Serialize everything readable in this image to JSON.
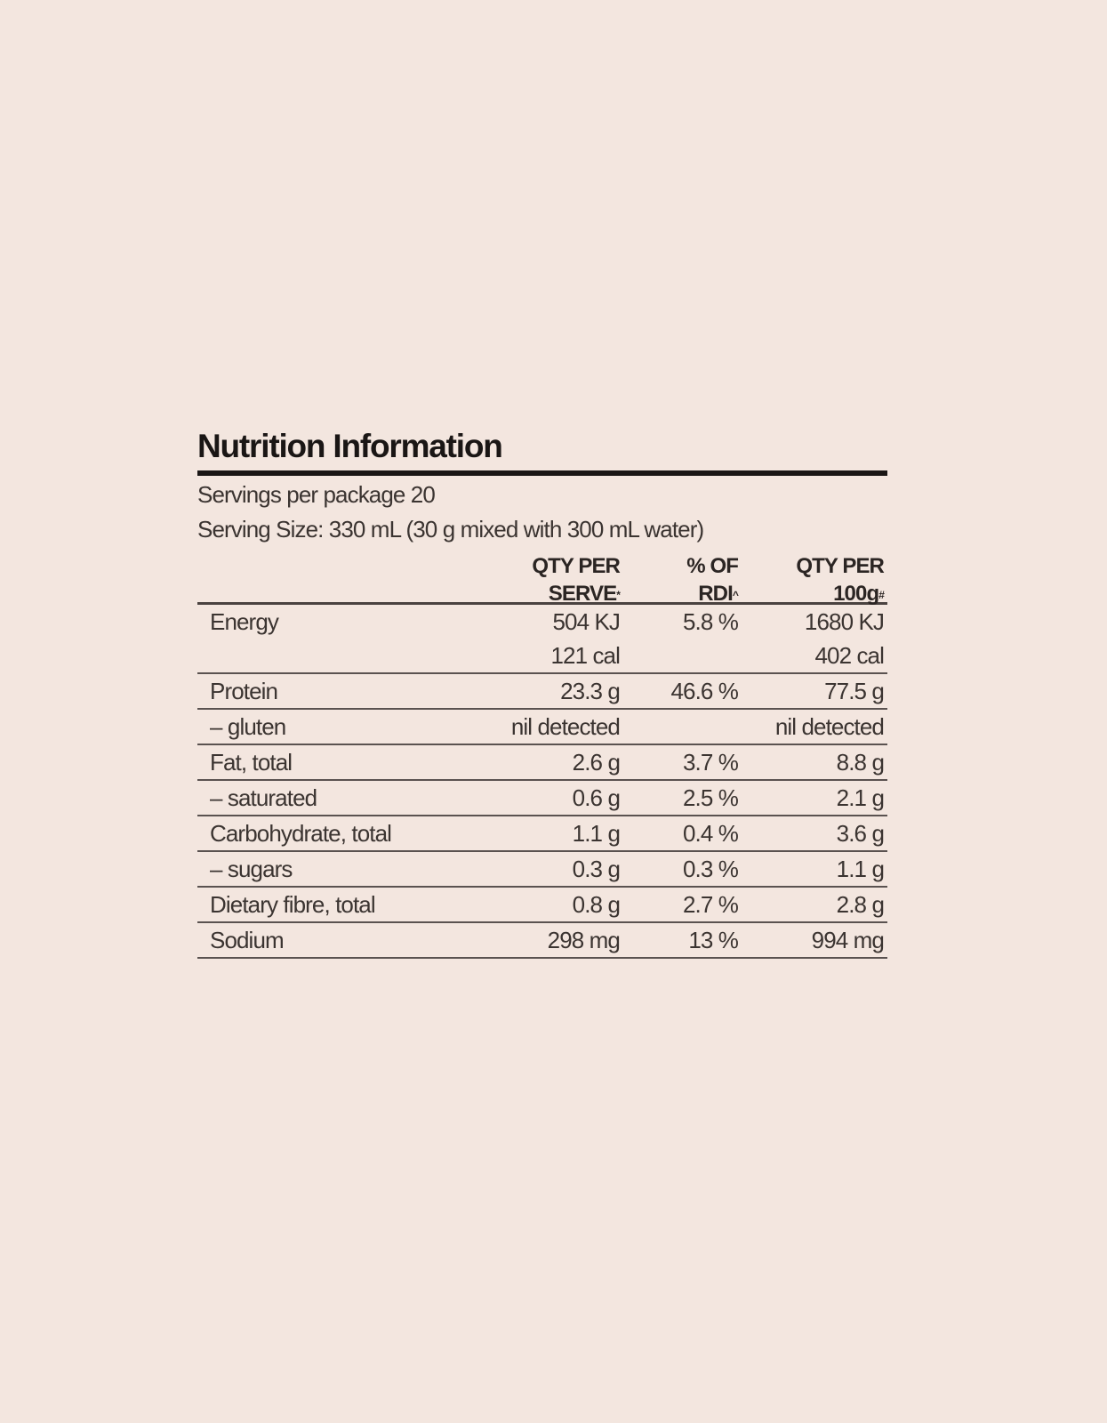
{
  "title": "Nutrition Information",
  "servings_per_package": "Servings per package 20",
  "serving_size": "Serving Size: 330 mL (30 g mixed with 300 mL water)",
  "columns": [
    {
      "line1": "",
      "line2": "",
      "mark": ""
    },
    {
      "line1": "QTY PER",
      "line2": "SERVE",
      "mark": "*"
    },
    {
      "line1": "% OF",
      "line2": "RDI",
      "mark": "^"
    },
    {
      "line1": "QTY PER",
      "line2": "100g",
      "mark": "#"
    }
  ],
  "rows": [
    {
      "nutrient": "Energy",
      "per_serve": "504 KJ",
      "per_serve_2": "121 cal",
      "rdi": "5.8 %",
      "per_100g": "1680 KJ",
      "per_100g_2": "402 cal"
    },
    {
      "nutrient": "Protein",
      "per_serve": "23.3 g",
      "rdi": "46.6 %",
      "per_100g": "77.5 g"
    },
    {
      "nutrient": "– gluten",
      "per_serve": "nil detected",
      "rdi": "",
      "per_100g": "nil detected"
    },
    {
      "nutrient": "Fat, total",
      "per_serve": "2.6 g",
      "rdi": "3.7 %",
      "per_100g": "8.8 g"
    },
    {
      "nutrient": "– saturated",
      "per_serve": "0.6 g",
      "rdi": "2.5 %",
      "per_100g": "2.1 g"
    },
    {
      "nutrient": "Carbohydrate, total",
      "per_serve": "1.1 g",
      "rdi": "0.4 %",
      "per_100g": "3.6 g"
    },
    {
      "nutrient": "– sugars",
      "per_serve": "0.3 g",
      "rdi": "0.3 %",
      "per_100g": "1.1 g"
    },
    {
      "nutrient": "Dietary fibre, total",
      "per_serve": "0.8 g",
      "rdi": "2.7 %",
      "per_100g": "2.8 g"
    },
    {
      "nutrient": "Sodium",
      "per_serve": "298 mg",
      "rdi": "13 %",
      "per_100g": "994 mg"
    }
  ]
}
